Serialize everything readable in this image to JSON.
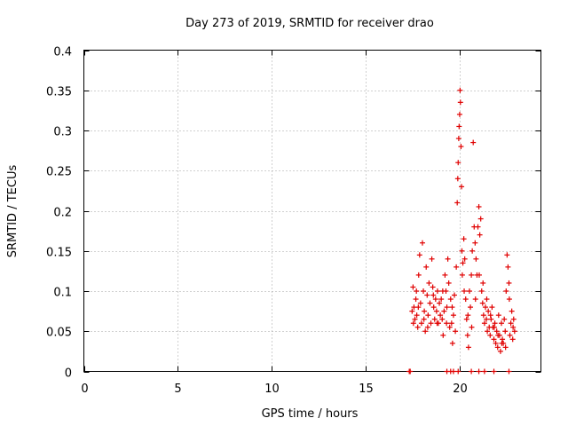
{
  "chart_data": {
    "type": "scatter",
    "title": "Day 273 of 2019, SRMTID for receiver drao",
    "xlabel": "GPS time / hours",
    "ylabel": "SRMTID / TECUs",
    "xlim": [
      0,
      24.3
    ],
    "ylim": [
      0,
      0.4
    ],
    "x_ticks": [
      "0",
      "5",
      "10",
      "15",
      "20"
    ],
    "y_ticks": [
      "0",
      "0.05",
      "0.1",
      "0.15",
      "0.2",
      "0.25",
      "0.3",
      "0.35",
      "0.4"
    ],
    "grid": true,
    "marker": "+",
    "series": [
      {
        "name": "SRMTID",
        "color": "#e00000",
        "points": [
          [
            17.3,
            0.0
          ],
          [
            17.35,
            0.0
          ],
          [
            19.3,
            0.0
          ],
          [
            19.5,
            0.0
          ],
          [
            19.65,
            0.0
          ],
          [
            19.9,
            0.0
          ],
          [
            20.6,
            0.0
          ],
          [
            21.0,
            0.0
          ],
          [
            21.3,
            0.0
          ],
          [
            21.8,
            0.0
          ],
          [
            22.6,
            0.0
          ],
          [
            17.5,
            0.105
          ],
          [
            17.55,
            0.08
          ],
          [
            17.6,
            0.065
          ],
          [
            17.65,
            0.09
          ],
          [
            17.7,
            0.07
          ],
          [
            17.75,
            0.055
          ],
          [
            17.8,
            0.12
          ],
          [
            17.85,
            0.145
          ],
          [
            17.9,
            0.085
          ],
          [
            17.95,
            0.06
          ],
          [
            18.0,
            0.16
          ],
          [
            18.05,
            0.1
          ],
          [
            18.1,
            0.075
          ],
          [
            18.15,
            0.05
          ],
          [
            18.2,
            0.13
          ],
          [
            18.25,
            0.095
          ],
          [
            18.3,
            0.07
          ],
          [
            18.35,
            0.11
          ],
          [
            18.4,
            0.085
          ],
          [
            18.45,
            0.06
          ],
          [
            18.5,
            0.14
          ],
          [
            18.55,
            0.105
          ],
          [
            18.6,
            0.08
          ],
          [
            18.65,
            0.065
          ],
          [
            18.7,
            0.09
          ],
          [
            18.75,
            0.075
          ],
          [
            18.8,
            0.1
          ],
          [
            18.85,
            0.06
          ],
          [
            18.9,
            0.085
          ],
          [
            18.95,
            0.07
          ],
          [
            19.0,
            0.09
          ],
          [
            19.05,
            0.065
          ],
          [
            19.1,
            0.045
          ],
          [
            19.15,
            0.075
          ],
          [
            19.2,
            0.12
          ],
          [
            19.25,
            0.1
          ],
          [
            19.3,
            0.08
          ],
          [
            19.35,
            0.14
          ],
          [
            19.4,
            0.11
          ],
          [
            19.45,
            0.055
          ],
          [
            19.5,
            0.09
          ],
          [
            19.55,
            0.06
          ],
          [
            19.6,
            0.035
          ],
          [
            19.65,
            0.07
          ],
          [
            19.7,
            0.095
          ],
          [
            19.75,
            0.05
          ],
          [
            19.8,
            0.13
          ],
          [
            19.85,
            0.21
          ],
          [
            19.88,
            0.24
          ],
          [
            19.9,
            0.26
          ],
          [
            19.93,
            0.29
          ],
          [
            19.95,
            0.305
          ],
          [
            19.98,
            0.32
          ],
          [
            20.0,
            0.35
          ],
          [
            20.02,
            0.335
          ],
          [
            20.05,
            0.28
          ],
          [
            20.08,
            0.23
          ],
          [
            20.1,
            0.15
          ],
          [
            20.12,
            0.12
          ],
          [
            20.15,
            0.135
          ],
          [
            20.2,
            0.165
          ],
          [
            20.25,
            0.14
          ],
          [
            20.3,
            0.09
          ],
          [
            20.35,
            0.065
          ],
          [
            20.4,
            0.045
          ],
          [
            20.45,
            0.03
          ],
          [
            20.5,
            0.1
          ],
          [
            20.55,
            0.08
          ],
          [
            20.6,
            0.12
          ],
          [
            20.65,
            0.15
          ],
          [
            20.7,
            0.285
          ],
          [
            20.75,
            0.18
          ],
          [
            20.8,
            0.16
          ],
          [
            20.85,
            0.14
          ],
          [
            20.9,
            0.12
          ],
          [
            20.95,
            0.18
          ],
          [
            21.0,
            0.205
          ],
          [
            21.05,
            0.17
          ],
          [
            21.1,
            0.19
          ],
          [
            21.15,
            0.1
          ],
          [
            21.2,
            0.085
          ],
          [
            21.25,
            0.07
          ],
          [
            21.3,
            0.06
          ],
          [
            21.35,
            0.08
          ],
          [
            21.4,
            0.065
          ],
          [
            21.45,
            0.05
          ],
          [
            21.5,
            0.075
          ],
          [
            21.55,
            0.055
          ],
          [
            21.6,
            0.045
          ],
          [
            21.65,
            0.065
          ],
          [
            21.7,
            0.08
          ],
          [
            21.75,
            0.055
          ],
          [
            21.8,
            0.04
          ],
          [
            21.85,
            0.06
          ],
          [
            21.9,
            0.035
          ],
          [
            21.95,
            0.05
          ],
          [
            22.0,
            0.03
          ],
          [
            22.05,
            0.07
          ],
          [
            22.1,
            0.045
          ],
          [
            22.15,
            0.025
          ],
          [
            22.2,
            0.06
          ],
          [
            22.25,
            0.04
          ],
          [
            22.3,
            0.035
          ],
          [
            22.35,
            0.065
          ],
          [
            22.4,
            0.05
          ],
          [
            22.45,
            0.1
          ],
          [
            22.5,
            0.145
          ],
          [
            22.55,
            0.13
          ],
          [
            22.6,
            0.11
          ],
          [
            22.65,
            0.045
          ],
          [
            22.7,
            0.06
          ],
          [
            22.75,
            0.075
          ],
          [
            22.8,
            0.04
          ],
          [
            22.85,
            0.065
          ],
          [
            22.9,
            0.05
          ],
          [
            17.45,
            0.075
          ],
          [
            17.52,
            0.06
          ],
          [
            17.68,
            0.1
          ],
          [
            17.78,
            0.08
          ],
          [
            18.08,
            0.065
          ],
          [
            18.28,
            0.055
          ],
          [
            18.58,
            0.095
          ],
          [
            18.78,
            0.06
          ],
          [
            19.08,
            0.1
          ],
          [
            19.28,
            0.06
          ],
          [
            19.58,
            0.08
          ],
          [
            20.22,
            0.1
          ],
          [
            20.42,
            0.07
          ],
          [
            20.62,
            0.055
          ],
          [
            20.82,
            0.09
          ],
          [
            21.02,
            0.12
          ],
          [
            21.22,
            0.11
          ],
          [
            21.42,
            0.09
          ],
          [
            21.62,
            0.07
          ],
          [
            21.82,
            0.055
          ],
          [
            22.02,
            0.045
          ],
          [
            22.22,
            0.035
          ],
          [
            22.42,
            0.03
          ],
          [
            22.62,
            0.09
          ],
          [
            22.82,
            0.055
          ]
        ]
      }
    ]
  }
}
